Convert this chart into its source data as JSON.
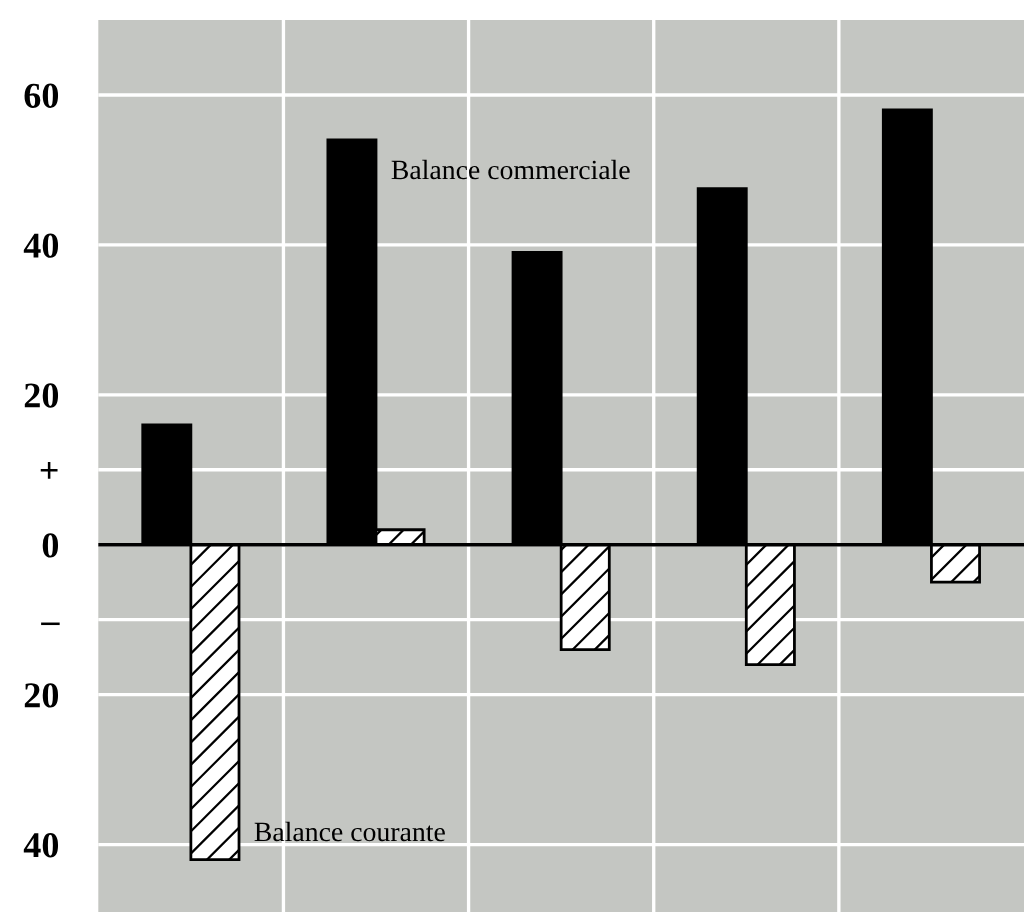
{
  "chart_data": {
    "type": "bar",
    "categories": [
      null,
      null,
      null,
      null,
      null
    ],
    "series": [
      {
        "name": "Balance commerciale",
        "color": "#000000",
        "values": [
          16,
          54,
          39,
          47.5,
          58
        ]
      },
      {
        "name": "Balance courante",
        "color": "#000000",
        "values": [
          -42,
          2,
          -14,
          -16,
          -5
        ]
      }
    ],
    "ylim": [
      -49,
      70
    ],
    "yticks": [
      60,
      40,
      20,
      {
        "value": 10,
        "label": "+"
      },
      0,
      {
        "value": -10,
        "label": "–"
      },
      {
        "value": -20,
        "label": "20"
      },
      {
        "value": -40,
        "label": "40"
      }
    ],
    "grid": true,
    "legend": false
  }
}
